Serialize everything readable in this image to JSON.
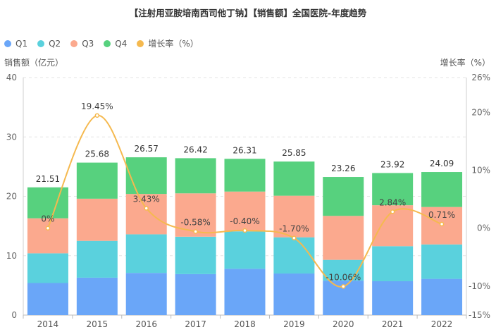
{
  "chart_data": {
    "type": "bar",
    "title": "【注射用亚胺培南西司他丁钠】【销售额】全国医院-年度趋势",
    "xlabel": "",
    "ylabel": "销售额（亿元）",
    "y2label": "增长率（%）",
    "categories": [
      "2014",
      "2015",
      "2016",
      "2017",
      "2018",
      "2019",
      "2020",
      "2021",
      "2022"
    ],
    "ylim": [
      0,
      40
    ],
    "y_ticks": [
      "0",
      "10",
      "20",
      "30",
      "40"
    ],
    "y2lim": [
      -15,
      26
    ],
    "y2_ticks": [
      "-15%",
      "-10%",
      "0%",
      "10%",
      "20%",
      "26%"
    ],
    "y2_tick_values": [
      -15,
      -10,
      0,
      10,
      20,
      26
    ],
    "series": [
      {
        "name": "Q1",
        "color": "#6aa6f8",
        "values": [
          5.4,
          6.3,
          7.1,
          6.9,
          7.8,
          7.0,
          5.8,
          5.7,
          6.1
        ]
      },
      {
        "name": "Q2",
        "color": "#5ad1dd",
        "values": [
          5.0,
          6.2,
          6.5,
          6.3,
          6.3,
          6.1,
          3.5,
          5.9,
          5.8
        ]
      },
      {
        "name": "Q3",
        "color": "#fba98e",
        "values": [
          5.9,
          7.1,
          6.8,
          7.3,
          6.7,
          7.0,
          7.4,
          6.9,
          6.3
        ]
      },
      {
        "name": "Q4",
        "color": "#57d17e",
        "values": [
          5.21,
          6.08,
          6.17,
          5.92,
          5.51,
          5.75,
          6.56,
          5.42,
          5.89
        ]
      }
    ],
    "totals": [
      "21.51",
      "25.68",
      "26.57",
      "26.42",
      "26.31",
      "25.85",
      "23.26",
      "23.92",
      "24.09"
    ],
    "growth": {
      "name": "增长率（%）",
      "color": "#f5b94f",
      "values": [
        0,
        19.45,
        3.43,
        -0.58,
        -0.4,
        -1.7,
        -10.06,
        2.84,
        0.71
      ],
      "labels": [
        "0%",
        "19.45%",
        "3.43%",
        "-0.58%",
        "-0.40%",
        "-1.70%",
        "-10.06%",
        "2.84%",
        "0.71%"
      ]
    }
  }
}
